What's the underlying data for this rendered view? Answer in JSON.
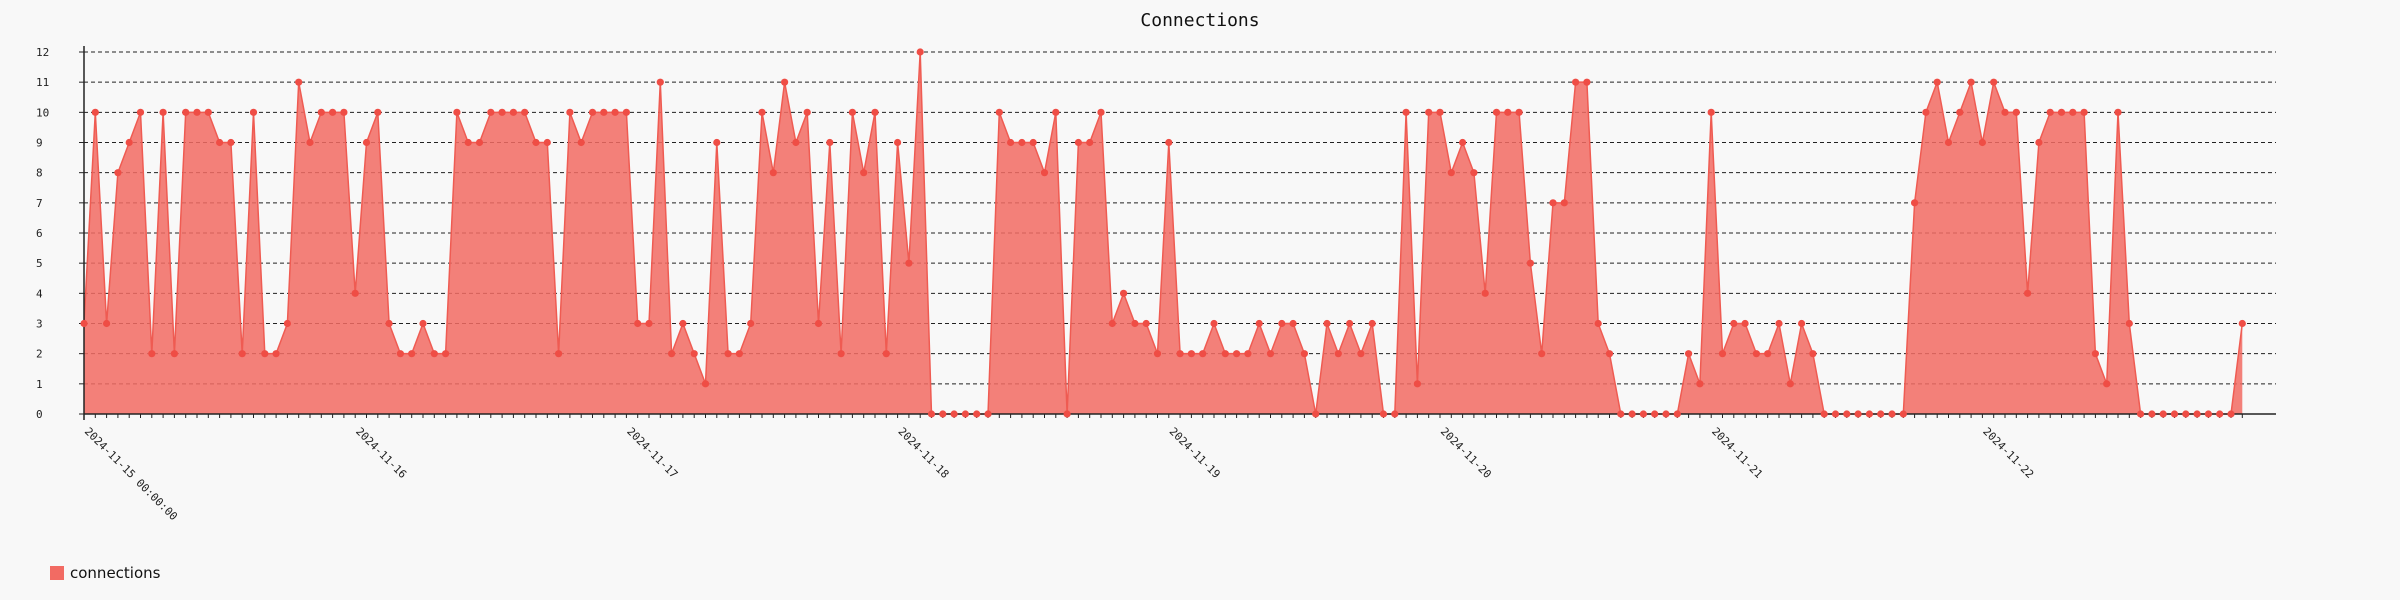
{
  "chart_data": {
    "type": "area",
    "title": "Connections",
    "xlabel": "",
    "ylabel": "",
    "ylim": [
      0,
      12
    ],
    "yticks": [
      0,
      1,
      2,
      3,
      4,
      5,
      6,
      7,
      8,
      9,
      10,
      11,
      12
    ],
    "grid": "horizontal-dashed",
    "legend_position": "bottom-left",
    "date_labels": [
      {
        "label": "2024-11-15 00:00:00",
        "index": 0
      },
      {
        "label": "2024-11-16",
        "index": 24
      },
      {
        "label": "2024-11-17",
        "index": 48
      },
      {
        "label": "2024-11-18",
        "index": 72
      },
      {
        "label": "2024-11-19",
        "index": 96
      },
      {
        "label": "2024-11-20",
        "index": 120
      },
      {
        "label": "2024-11-21",
        "index": 144
      },
      {
        "label": "2024-11-22",
        "index": 168
      }
    ],
    "series": [
      {
        "name": "connections",
        "color": "#f26b63",
        "values": [
          3,
          10,
          3,
          8,
          9,
          10,
          2,
          10,
          2,
          10,
          10,
          10,
          9,
          9,
          2,
          10,
          2,
          2,
          3,
          11,
          9,
          10,
          10,
          10,
          4,
          9,
          10,
          3,
          2,
          2,
          3,
          2,
          2,
          10,
          9,
          9,
          10,
          10,
          10,
          10,
          9,
          9,
          2,
          10,
          9,
          10,
          10,
          10,
          10,
          3,
          3,
          11,
          2,
          3,
          2,
          1,
          9,
          2,
          2,
          3,
          10,
          8,
          11,
          9,
          10,
          3,
          9,
          2,
          10,
          8,
          10,
          2,
          9,
          5,
          12,
          0,
          0,
          0,
          0,
          0,
          0,
          10,
          9,
          9,
          9,
          8,
          10,
          0,
          9,
          9,
          10,
          3,
          4,
          3,
          3,
          2,
          9,
          2,
          2,
          2,
          3,
          2,
          2,
          2,
          3,
          2,
          3,
          3,
          2,
          0,
          3,
          2,
          3,
          2,
          3,
          0,
          0,
          10,
          1,
          10,
          10,
          8,
          9,
          8,
          4,
          10,
          10,
          10,
          5,
          2,
          7,
          7,
          11,
          11,
          3,
          2,
          0,
          0,
          0,
          0,
          0,
          0,
          2,
          1,
          10,
          2,
          3,
          3,
          2,
          2,
          3,
          1,
          3,
          2,
          0,
          0,
          0,
          0,
          0,
          0,
          0,
          0,
          7,
          10,
          11,
          9,
          10,
          11,
          9,
          11,
          10,
          10,
          4,
          9,
          10,
          10,
          10,
          10,
          2,
          1,
          10,
          3,
          0,
          0,
          0,
          0,
          0,
          0,
          0,
          0,
          0,
          3
        ]
      }
    ]
  }
}
